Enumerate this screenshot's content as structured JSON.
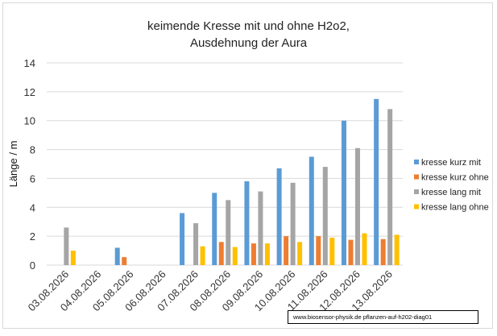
{
  "chart_data": {
    "type": "bar",
    "title_lines": [
      "keimende Kresse mit und ohne H2o2,",
      "Ausdehnung der Aura"
    ],
    "xlabel": "",
    "ylabel": "Länge / m",
    "ylim": [
      0,
      14
    ],
    "yticks": [
      0,
      2,
      4,
      6,
      8,
      10,
      12,
      14
    ],
    "grid": true,
    "legend_position": "right",
    "categories": [
      "03.08.2026",
      "04.08.2026",
      "05.08.2026",
      "06.08.2026",
      "07.08.2026",
      "08.08.2026",
      "09.08.2026",
      "10.08.2026",
      "11.08.2026",
      "12.08.2026",
      "13.08.2026"
    ],
    "series": [
      {
        "name": "kresse kurz mit",
        "color": "#5b9bd5",
        "values": [
          null,
          null,
          1.2,
          null,
          3.6,
          5.0,
          5.8,
          6.7,
          7.5,
          10.0,
          11.5
        ]
      },
      {
        "name": "kresse kurz ohne",
        "color": "#ed7d31",
        "values": [
          null,
          null,
          0.55,
          null,
          null,
          1.6,
          1.5,
          2.0,
          2.0,
          1.75,
          1.8
        ]
      },
      {
        "name": "kresse lang mit",
        "color": "#a5a5a5",
        "values": [
          2.6,
          null,
          null,
          null,
          2.9,
          4.5,
          5.1,
          5.7,
          6.8,
          8.1,
          10.8
        ]
      },
      {
        "name": "kresse lang ohne",
        "color": "#ffc000",
        "values": [
          1.0,
          null,
          null,
          null,
          1.3,
          1.25,
          1.5,
          1.6,
          1.9,
          2.2,
          2.1
        ]
      }
    ]
  },
  "source_note": "www.biosensor-physik.de   pflanzen-auf-h202-diag01"
}
